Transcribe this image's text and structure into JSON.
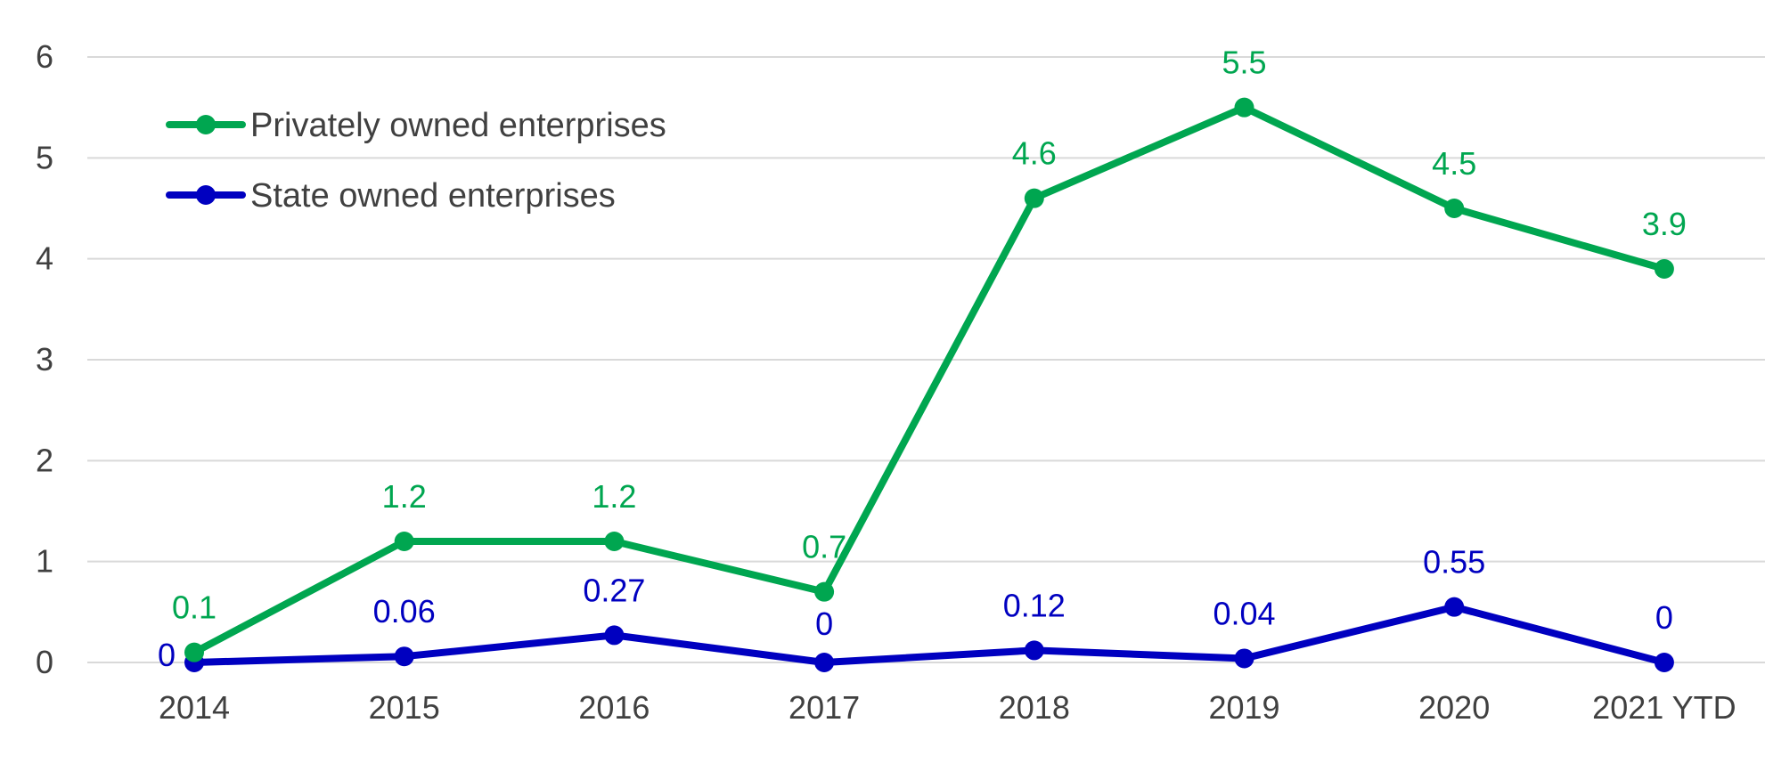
{
  "chart_data": {
    "type": "line",
    "title": "",
    "xlabel": "",
    "ylabel": "",
    "categories": [
      "2014",
      "2015",
      "2016",
      "2017",
      "2018",
      "2019",
      "2020",
      "2021 YTD"
    ],
    "ylim": [
      0,
      6
    ],
    "yticks": [
      0,
      1,
      2,
      3,
      4,
      5,
      6
    ],
    "grid": true,
    "legend_position": "top-left",
    "series": [
      {
        "name": "Privately owned enterprises",
        "color": "#00a650",
        "values": [
          0.1,
          1.2,
          1.2,
          0.7,
          4.6,
          5.5,
          4.5,
          3.9
        ],
        "labels": [
          "0.1",
          "1.2",
          "1.2",
          "0.7",
          "4.6",
          "5.5",
          "4.5",
          "3.9"
        ]
      },
      {
        "name": "State owned enterprises",
        "color": "#0000c0",
        "values": [
          0,
          0.06,
          0.27,
          0,
          0.12,
          0.04,
          0.55,
          0
        ],
        "labels": [
          "0",
          "0.06",
          "0.27",
          "0",
          "0.12",
          "0.04",
          "0.55",
          "0"
        ]
      }
    ]
  }
}
